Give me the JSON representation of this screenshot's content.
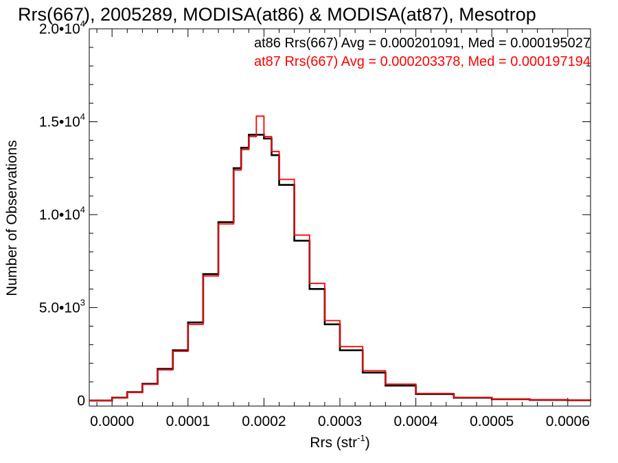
{
  "chart_data": {
    "type": "line",
    "title": "Rrs(667), 2005289, MODISA(at86) & MODISA(at87), Mesotrop",
    "xlabel": "Rrs (str",
    "xlabel_sup": "-1",
    "xlabel_close": ")",
    "ylabel": "Number of Observations",
    "xlim": [
      -3e-05,
      0.00063
    ],
    "ylim": [
      -300,
      20000
    ],
    "xticks": [
      0.0,
      0.0001,
      0.0002,
      0.0003,
      0.0004,
      0.0005,
      0.0006
    ],
    "xtick_labels": [
      "0.0000",
      "0.0001",
      "0.0002",
      "0.0003",
      "0.0004",
      "0.0005",
      "0.0006"
    ],
    "yticks": [
      0,
      5000,
      10000,
      15000,
      20000
    ],
    "ytick_labels": [
      {
        "base": "0",
        "exp": ""
      },
      {
        "base": "5.0•10",
        "exp": "3"
      },
      {
        "base": "1.0•10",
        "exp": "4"
      },
      {
        "base": "1.5•10",
        "exp": "4"
      },
      {
        "base": "2.0•10",
        "exp": "4"
      }
    ],
    "grid": false,
    "legend_position": "top-right",
    "series": [
      {
        "name": "at86 Rrs(667) Avg = 0.000201091, Med = 0.000195027",
        "color": "#000000",
        "x": [
          -3e-05,
          0.0,
          2e-05,
          4e-05,
          6e-05,
          8e-05,
          0.0001,
          0.00012,
          0.00014,
          0.00016,
          0.00017,
          0.00018,
          0.00019,
          0.0002,
          0.00021,
          0.00022,
          0.00024,
          0.00026,
          0.00028,
          0.0003,
          0.00033,
          0.00036,
          0.0004,
          0.00045,
          0.0005,
          0.00055,
          0.0006,
          0.00063
        ],
        "y": [
          0,
          150,
          450,
          900,
          1700,
          2700,
          4200,
          6800,
          9600,
          12500,
          13600,
          14300,
          14300,
          14100,
          13200,
          11600,
          8600,
          6000,
          4100,
          2700,
          1500,
          800,
          350,
          150,
          70,
          30,
          15,
          10
        ]
      },
      {
        "name": "at87 Rrs(667) Avg = 0.000203378, Med = 0.000197194",
        "color": "#ff0000",
        "x": [
          -3e-05,
          0.0,
          2e-05,
          4e-05,
          6e-05,
          8e-05,
          0.0001,
          0.00012,
          0.00014,
          0.00016,
          0.00017,
          0.00018,
          0.00019,
          0.0002,
          0.00021,
          0.00022,
          0.00024,
          0.00026,
          0.00028,
          0.0003,
          0.00033,
          0.00036,
          0.0004,
          0.00045,
          0.0005,
          0.00055,
          0.0006,
          0.00063
        ],
        "y": [
          0,
          140,
          430,
          870,
          1650,
          2650,
          4100,
          6700,
          9500,
          12400,
          13500,
          14200,
          15300,
          14200,
          13400,
          11900,
          8900,
          6300,
          4300,
          2900,
          1600,
          880,
          380,
          160,
          80,
          35,
          18,
          12
        ]
      }
    ]
  }
}
